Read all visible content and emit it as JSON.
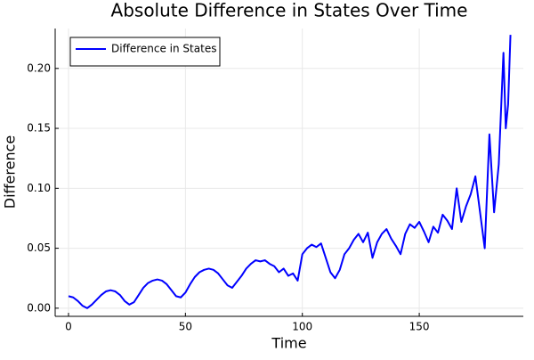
{
  "chart_data": {
    "type": "line",
    "title": "Absolute Difference in States Over Time",
    "x_label": "Time",
    "y_label": "Difference",
    "x": [
      0,
      2,
      4,
      6,
      8,
      10,
      12,
      14,
      16,
      18,
      20,
      22,
      24,
      26,
      28,
      30,
      32,
      34,
      36,
      38,
      40,
      42,
      44,
      46,
      48,
      50,
      52,
      54,
      56,
      58,
      60,
      62,
      64,
      66,
      68,
      70,
      72,
      74,
      76,
      78,
      80,
      82,
      84,
      86,
      88,
      90,
      92,
      94,
      96,
      98,
      100,
      102,
      104,
      106,
      108,
      110,
      112,
      114,
      116,
      118,
      120,
      122,
      124,
      126,
      128,
      130,
      132,
      134,
      136,
      138,
      140,
      142,
      144,
      146,
      148,
      150,
      152,
      154,
      156,
      158,
      160,
      162,
      164,
      166,
      168,
      170,
      172,
      174,
      176,
      178,
      180,
      182,
      184,
      186,
      187,
      188,
      189
    ],
    "series": [
      {
        "name": "Difference in States",
        "color": "#0000ff",
        "values": [
          0.01,
          0.009,
          0.006,
          0.002,
          0.0,
          0.003,
          0.007,
          0.011,
          0.014,
          0.015,
          0.014,
          0.011,
          0.006,
          0.003,
          0.005,
          0.011,
          0.017,
          0.021,
          0.023,
          0.024,
          0.023,
          0.02,
          0.015,
          0.01,
          0.009,
          0.013,
          0.02,
          0.026,
          0.03,
          0.032,
          0.033,
          0.032,
          0.029,
          0.024,
          0.019,
          0.017,
          0.022,
          0.027,
          0.033,
          0.037,
          0.04,
          0.039,
          0.04,
          0.037,
          0.035,
          0.03,
          0.033,
          0.027,
          0.029,
          0.023,
          0.045,
          0.05,
          0.053,
          0.051,
          0.054,
          0.042,
          0.03,
          0.025,
          0.032,
          0.045,
          0.05,
          0.057,
          0.062,
          0.055,
          0.063,
          0.042,
          0.055,
          0.062,
          0.066,
          0.058,
          0.052,
          0.045,
          0.062,
          0.07,
          0.067,
          0.072,
          0.064,
          0.055,
          0.068,
          0.063,
          0.078,
          0.073,
          0.066,
          0.1,
          0.072,
          0.085,
          0.095,
          0.11,
          0.08,
          0.05,
          0.145,
          0.08,
          0.12,
          0.213,
          0.15,
          0.17,
          0.228
        ]
      }
    ],
    "xlim": [
      -5.7,
      194.5
    ],
    "xticks": [
      0,
      50,
      100,
      150
    ],
    "ylim": [
      -0.0068,
      0.2333
    ],
    "yticks": [
      {
        "value": 0,
        "label": "0.00"
      },
      {
        "value": 0.05,
        "label": "0.05"
      },
      {
        "value": 0.1,
        "label": "0.10"
      },
      {
        "value": 0.15,
        "label": "0.15"
      },
      {
        "value": 0.2,
        "label": "0.20"
      }
    ],
    "grid": true,
    "legend": "top-left"
  }
}
